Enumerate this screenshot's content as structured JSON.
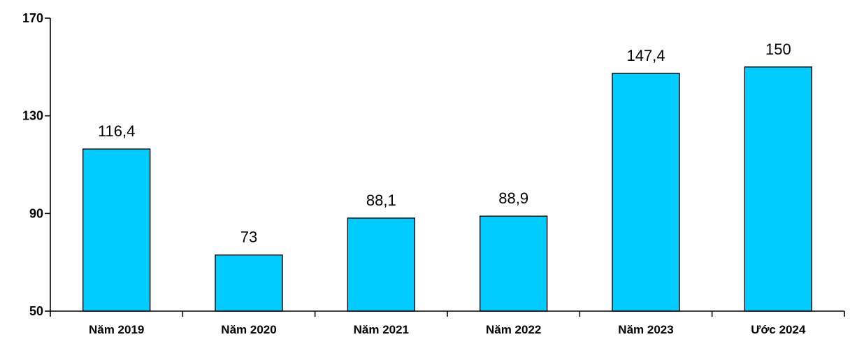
{
  "chart_data": {
    "type": "bar",
    "categories": [
      "Năm 2019",
      "Năm 2020",
      "Năm 2021",
      "Năm 2022",
      "Năm 2023",
      "Ước 2024"
    ],
    "values": [
      116.4,
      73,
      88.1,
      88.9,
      147.4,
      150
    ],
    "data_labels": [
      "116,4",
      "73",
      "88,1",
      "88,9",
      "147,4",
      "150"
    ],
    "title": "",
    "xlabel": "",
    "ylabel": "",
    "ylim": [
      50,
      170
    ],
    "yticks": [
      50,
      90,
      130,
      170
    ],
    "grid": false,
    "legend": "none",
    "bar_color": "#00CCFF"
  }
}
